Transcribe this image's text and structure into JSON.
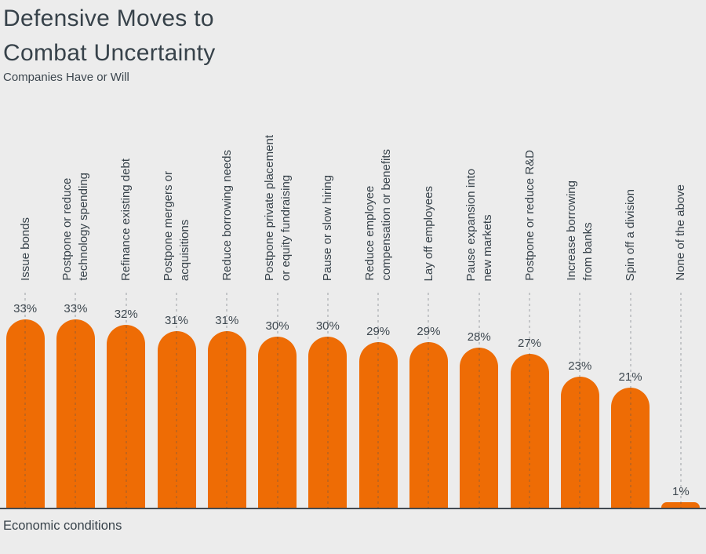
{
  "header": {
    "title": "Defensive Moves to\nCombat Uncertainty",
    "subtitle": "Companies Have or Will"
  },
  "footer": {
    "axis_label": "Economic conditions"
  },
  "colors": {
    "bar": "#EE6C05",
    "background": "#ECECEC",
    "text": "#37424A",
    "value_text": "#3D474F",
    "baseline": "#434A51",
    "gridline": "rgba(68,78,88,0.24)"
  },
  "chart_data": {
    "type": "bar",
    "title": "Defensive Moves to Combat Uncertainty",
    "subtitle": "Companies Have or Will",
    "xlabel": "Economic conditions",
    "ylabel": "",
    "value_suffix": "%",
    "legend": "none",
    "grid": "vertical-dashed",
    "bar_corner": "rounded-top",
    "ylim": [
      0,
      35
    ],
    "categories": [
      "Issue bonds",
      "Postpone or reduce\ntechnology spending",
      "Refinance existing debt",
      "Postpone mergers or\nacquisitions",
      "Reduce borrowing needs",
      "Postpone private placement\nor equity fundraising",
      "Pause or slow hiring",
      "Reduce employee\ncompensation or benefits",
      "Lay off employees",
      "Pause expansion into\nnew markets",
      "Postpone or reduce R&D",
      "Increase borrowing\nfrom banks",
      "Spin off a division",
      "None of the above"
    ],
    "values": [
      33,
      33,
      32,
      31,
      31,
      30,
      30,
      29,
      29,
      28,
      27,
      23,
      21,
      1
    ],
    "value_labels": [
      "33%",
      "33%",
      "32%",
      "31%",
      "31%",
      "30%",
      "30%",
      "29%",
      "29%",
      "28%",
      "27%",
      "23%",
      "21%",
      "1%"
    ]
  }
}
